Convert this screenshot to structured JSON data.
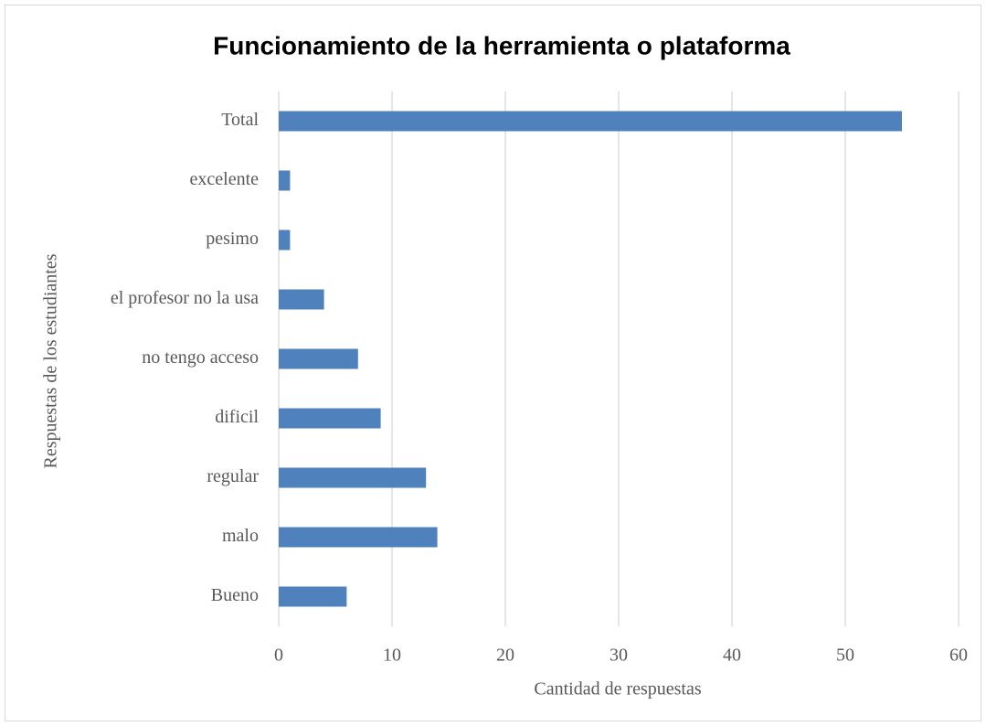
{
  "chart_data": {
    "type": "bar",
    "orientation": "horizontal",
    "title": "Funcionamiento de la herramienta o plataforma",
    "x_label": "Cantidad de respuestas",
    "y_label": "Respuestas de los estudiantes",
    "categories": [
      "Total",
      "excelente",
      "pesimo",
      "el profesor no la usa",
      "no tengo acceso",
      "dificil",
      "regular",
      "malo",
      "Bueno"
    ],
    "values": [
      55,
      1,
      1,
      4,
      7,
      9,
      13,
      14,
      6
    ],
    "color": "#4f81bd",
    "xlim": [
      0,
      60
    ],
    "xticks": [
      0,
      10,
      20,
      30,
      40,
      50,
      60
    ],
    "grid": true
  }
}
